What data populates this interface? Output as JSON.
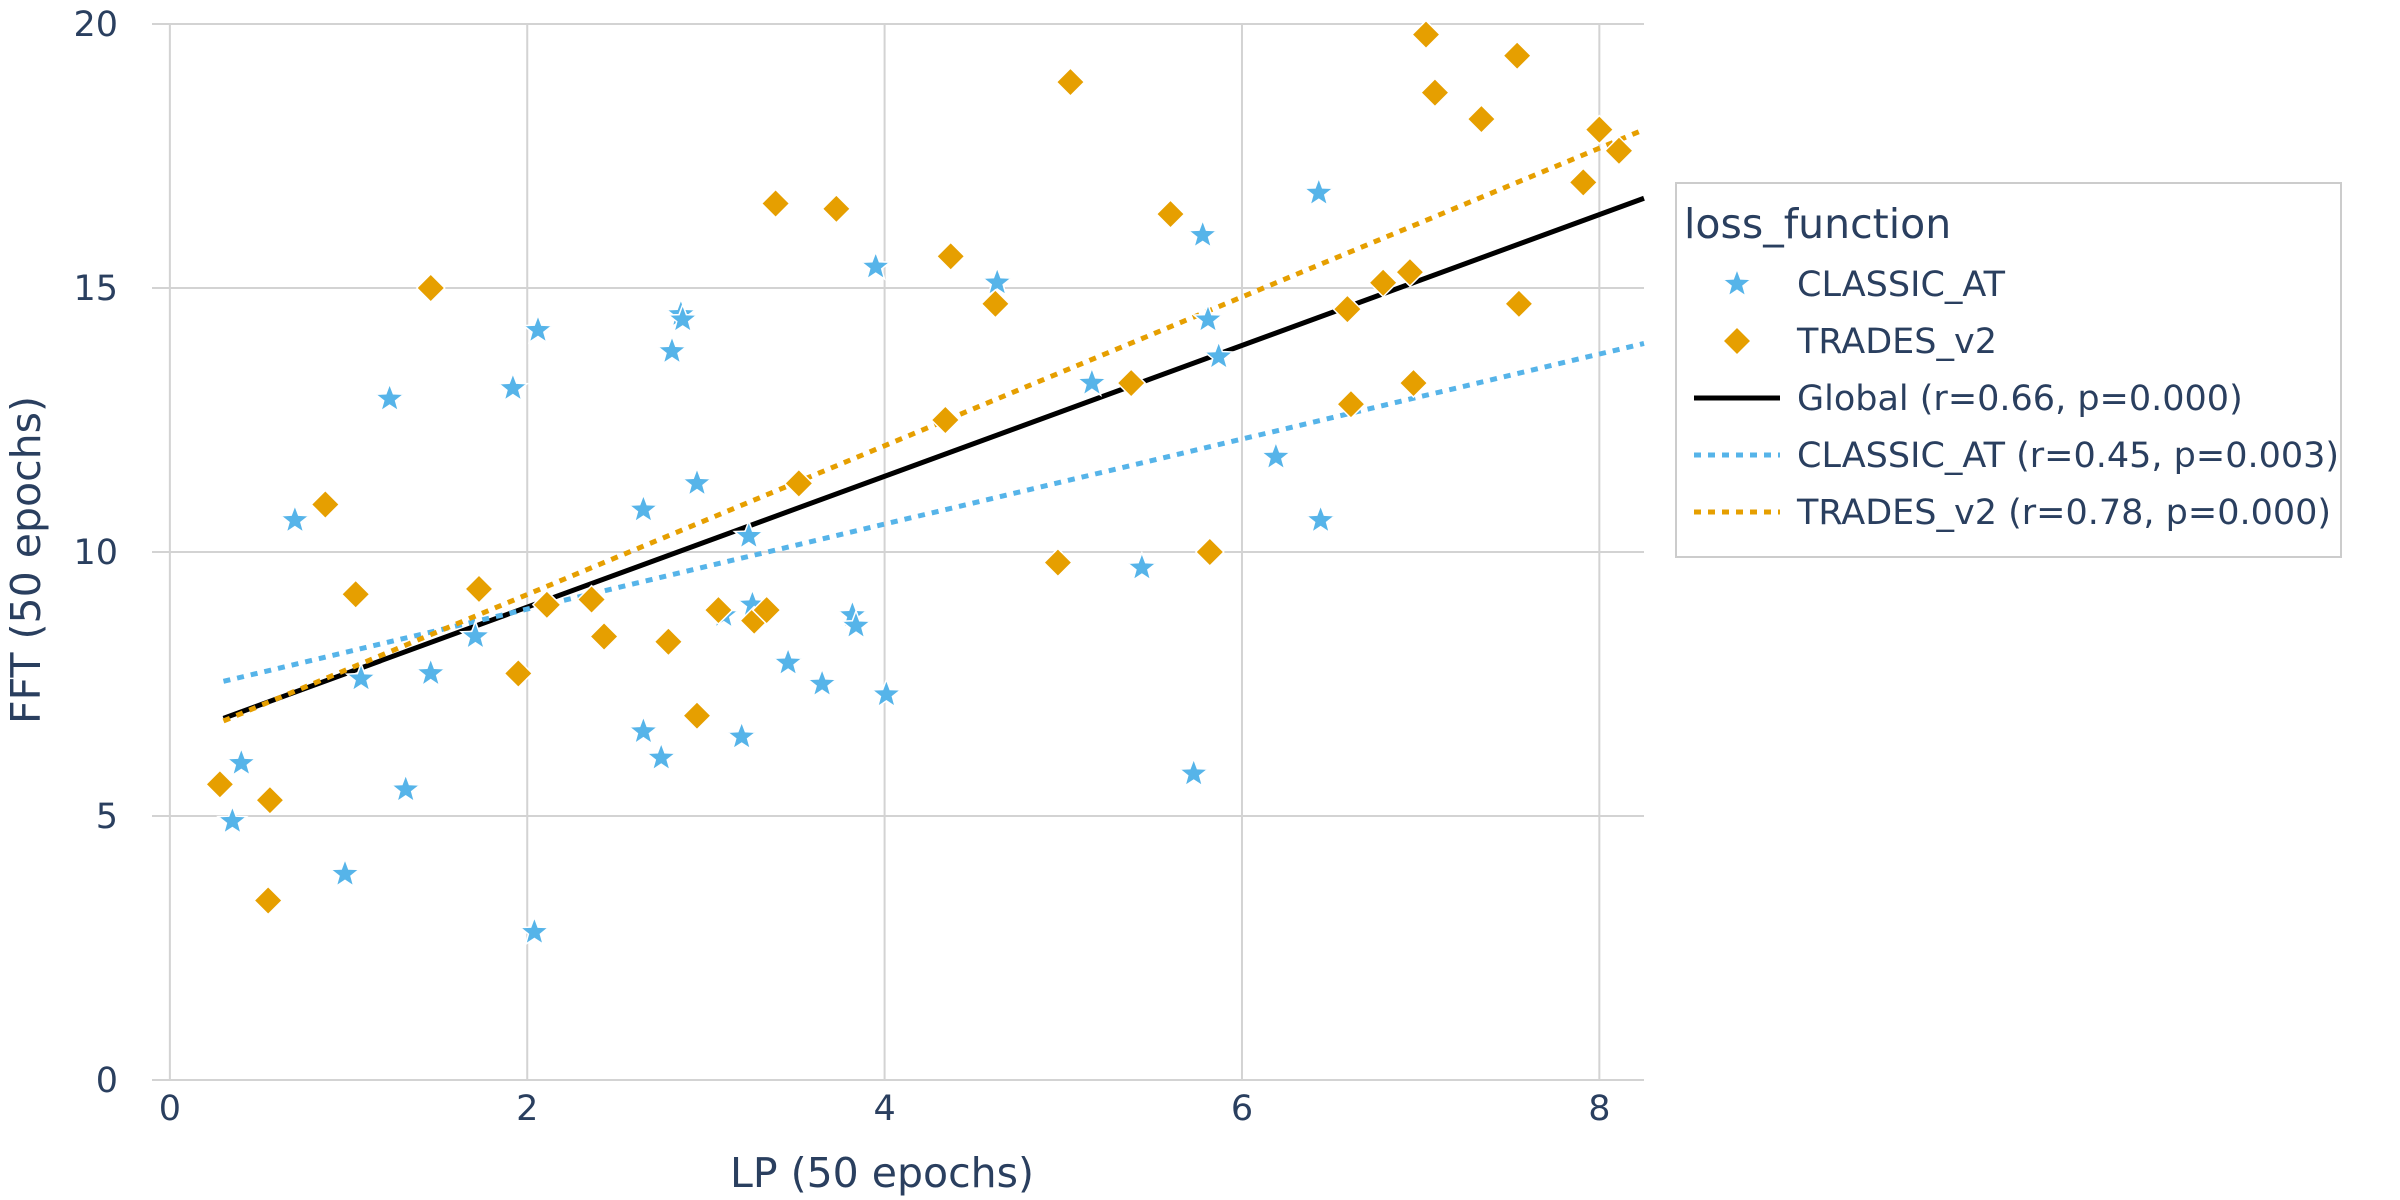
{
  "chart_data": {
    "type": "scatter",
    "title": "",
    "xlabel": "LP (50 epochs)",
    "ylabel": "FFT (50 epochs)",
    "xlim": [
      -0.1,
      8.25
    ],
    "ylim": [
      0,
      20
    ],
    "x_ticks": [
      0,
      2,
      4,
      6,
      8
    ],
    "y_ticks": [
      0,
      5,
      10,
      15,
      20
    ],
    "grid": true,
    "legend": {
      "title": "loss_function",
      "placement": "right"
    },
    "series": [
      {
        "name": "CLASSIC_AT",
        "marker": "star",
        "color": "#56b4e9",
        "points": [
          [
            0.35,
            4.9
          ],
          [
            0.4,
            6.0
          ],
          [
            0.7,
            10.6
          ],
          [
            0.98,
            3.9
          ],
          [
            1.07,
            7.6
          ],
          [
            1.23,
            12.9
          ],
          [
            1.32,
            5.5
          ],
          [
            1.46,
            7.7
          ],
          [
            1.71,
            8.4
          ],
          [
            1.92,
            13.1
          ],
          [
            2.04,
            2.8
          ],
          [
            2.06,
            14.2
          ],
          [
            2.65,
            10.8
          ],
          [
            2.65,
            6.6
          ],
          [
            2.75,
            6.1
          ],
          [
            2.81,
            13.8
          ],
          [
            2.86,
            14.5
          ],
          [
            2.87,
            14.4
          ],
          [
            2.95,
            11.3
          ],
          [
            3.1,
            8.8
          ],
          [
            3.2,
            6.5
          ],
          [
            3.24,
            10.3
          ],
          [
            3.26,
            9.0
          ],
          [
            3.46,
            7.9
          ],
          [
            3.65,
            7.5
          ],
          [
            3.82,
            8.8
          ],
          [
            3.84,
            8.6
          ],
          [
            3.95,
            15.4
          ],
          [
            4.01,
            7.3
          ],
          [
            4.63,
            15.1
          ],
          [
            5.16,
            13.2
          ],
          [
            5.44,
            9.7
          ],
          [
            5.73,
            5.8
          ],
          [
            5.78,
            16.0
          ],
          [
            5.81,
            14.4
          ],
          [
            5.87,
            13.7
          ],
          [
            6.19,
            11.8
          ],
          [
            6.43,
            16.8
          ],
          [
            6.44,
            10.6
          ]
        ]
      },
      {
        "name": "TRADES_v2",
        "marker": "diamond",
        "color": "#e69f00",
        "points": [
          [
            0.28,
            5.6
          ],
          [
            0.55,
            3.4
          ],
          [
            0.56,
            5.3
          ],
          [
            0.87,
            10.9
          ],
          [
            1.04,
            9.2
          ],
          [
            1.46,
            15.0
          ],
          [
            1.73,
            9.3
          ],
          [
            1.95,
            7.7
          ],
          [
            2.11,
            9.0
          ],
          [
            2.36,
            9.1
          ],
          [
            2.43,
            8.4
          ],
          [
            2.79,
            8.3
          ],
          [
            2.95,
            6.9
          ],
          [
            3.07,
            8.9
          ],
          [
            3.27,
            8.7
          ],
          [
            3.34,
            8.9
          ],
          [
            3.39,
            16.6
          ],
          [
            3.52,
            11.3
          ],
          [
            3.73,
            16.5
          ],
          [
            4.34,
            12.5
          ],
          [
            4.37,
            15.6
          ],
          [
            4.62,
            14.7
          ],
          [
            4.97,
            9.8
          ],
          [
            5.04,
            18.9
          ],
          [
            5.38,
            13.2
          ],
          [
            5.6,
            16.4
          ],
          [
            5.82,
            10.0
          ],
          [
            6.59,
            14.6
          ],
          [
            6.61,
            12.8
          ],
          [
            6.79,
            15.1
          ],
          [
            6.94,
            15.3
          ],
          [
            6.96,
            13.2
          ],
          [
            7.03,
            19.8
          ],
          [
            7.08,
            18.7
          ],
          [
            7.34,
            18.2
          ],
          [
            7.54,
            19.4
          ],
          [
            7.55,
            14.7
          ],
          [
            7.91,
            17.0
          ],
          [
            8.0,
            18.0
          ],
          [
            8.11,
            17.6
          ]
        ]
      }
    ],
    "trendlines": [
      {
        "name": "Global (r=0.66, p=0.000)",
        "color": "#000000",
        "dash": "solid",
        "x": [
          0.3,
          8.25
        ],
        "y": [
          6.85,
          16.7
        ]
      },
      {
        "name": "CLASSIC_AT (r=0.45, p=0.003)",
        "color": "#56b4e9",
        "dash": "dot",
        "x": [
          0.3,
          8.25
        ],
        "y": [
          7.55,
          13.95
        ]
      },
      {
        "name": "TRADES_v2 (r=0.78, p=0.000)",
        "color": "#e69f00",
        "dash": "dot",
        "x": [
          0.3,
          8.25
        ],
        "y": [
          6.8,
          18.0
        ]
      }
    ]
  }
}
